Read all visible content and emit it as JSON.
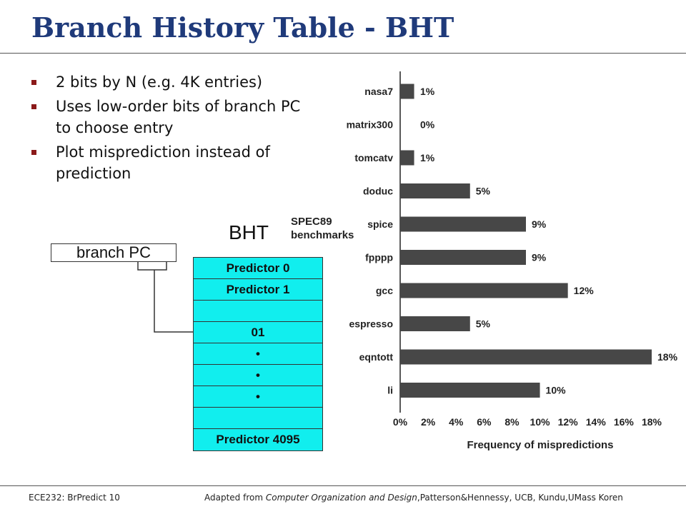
{
  "title": "Branch History Table - BHT",
  "bullets": [
    "2 bits by N (e.g. 4K entries)",
    "Uses low-order bits of branch PC to choose entry",
    "Plot misprediction instead of prediction"
  ],
  "diagram": {
    "bht_label": "BHT",
    "branch_pc_label": "branch PC",
    "rows": [
      "Predictor 0",
      "Predictor 1",
      "",
      "01",
      "•",
      "•",
      "•",
      "",
      "Predictor 4095"
    ]
  },
  "chart_data": {
    "type": "bar",
    "orientation": "horizontal",
    "title": "",
    "legend_note": "SPEC89 benchmarks",
    "xlabel": "Frequency of mispredictions",
    "ylabel": "",
    "categories": [
      "nasa7",
      "matrix300",
      "tomcatv",
      "doduc",
      "spice",
      "fpppp",
      "gcc",
      "espresso",
      "eqntott",
      "li"
    ],
    "values": [
      1,
      0,
      1,
      5,
      9,
      9,
      12,
      5,
      18,
      10
    ],
    "value_labels": [
      "1%",
      "0%",
      "1%",
      "5%",
      "9%",
      "9%",
      "12%",
      "5%",
      "18%",
      "10%"
    ],
    "xlim": [
      0,
      18
    ],
    "xticks": [
      0,
      2,
      4,
      6,
      8,
      10,
      12,
      14,
      16,
      18
    ],
    "xtick_labels": [
      "0%",
      "2%",
      "4%",
      "6%",
      "8%",
      "10%",
      "12%",
      "14%",
      "16%",
      "18%"
    ],
    "bar_color": "#474747",
    "grid": false
  },
  "footer": {
    "left": "ECE232: BrPredict 10",
    "credit_prefix": "Adapted from ",
    "credit_book": "Computer Organization and Design",
    "credit_suffix": ",Patterson&Hennessy, UCB, Kundu,UMass Koren"
  },
  "colors": {
    "title": "#1f3a7a",
    "bullet": "#8b1a1a",
    "bht_fill": "#11eeee"
  }
}
